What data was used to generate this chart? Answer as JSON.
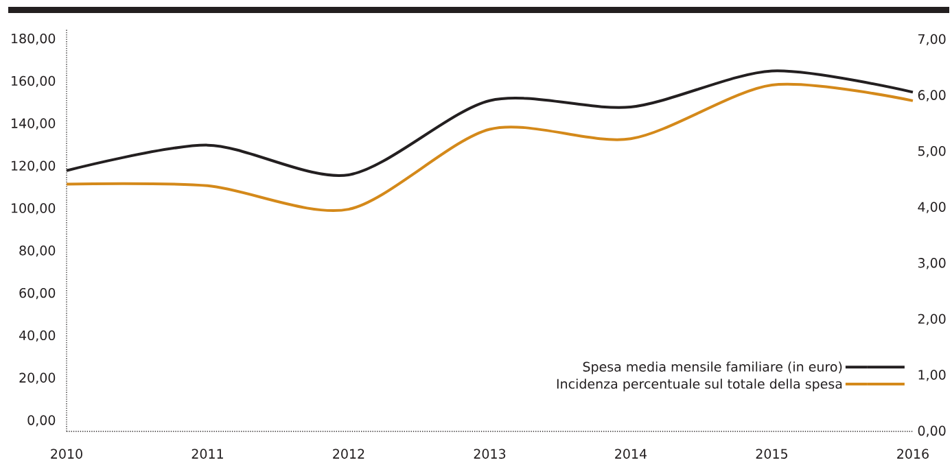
{
  "chart_data": {
    "type": "line",
    "categories": [
      "2010",
      "2011",
      "2012",
      "2013",
      "2014",
      "2015",
      "2016"
    ],
    "series": [
      {
        "name": "Spesa media mensile familiare (in euro)",
        "color": "#231f20",
        "values": [
          118,
          130,
          116,
          151,
          148,
          165,
          155
        ]
      },
      {
        "name": "Incidenza percentuale sul totale della spesa",
        "color": "#d4891a",
        "axis": "y2",
        "values": [
          4.42,
          4.39,
          3.97,
          5.4,
          5.23,
          6.19,
          5.91
        ]
      }
    ],
    "ylim": [
      -5,
      185
    ],
    "yticks": [
      {
        "value": 0,
        "label": "0,00"
      },
      {
        "value": 20,
        "label": "20,00"
      },
      {
        "value": 40,
        "label": "40,00"
      },
      {
        "value": 60,
        "label": "60,00"
      },
      {
        "value": 80,
        "label": "80,00"
      },
      {
        "value": 100,
        "label": "100,00"
      },
      {
        "value": 120,
        "label": "120,00"
      },
      {
        "value": 140,
        "label": "140,00"
      },
      {
        "value": 160,
        "label": "160,00"
      },
      {
        "value": 180,
        "label": "180,00"
      }
    ],
    "y2lim": [
      0,
      7.2
    ],
    "y2ticks": [
      {
        "value": 0,
        "label": "0,00"
      },
      {
        "value": 1,
        "label": "1,00"
      },
      {
        "value": 2,
        "label": "2,00"
      },
      {
        "value": 3,
        "label": "3,00"
      },
      {
        "value": 4,
        "label": "4,00"
      },
      {
        "value": 5,
        "label": "5,00"
      },
      {
        "value": 6,
        "label": "6,00"
      },
      {
        "value": 7,
        "label": "7,00"
      }
    ],
    "legend": "bottom right",
    "grid": false,
    "marker": "none",
    "line_style": "solid"
  }
}
